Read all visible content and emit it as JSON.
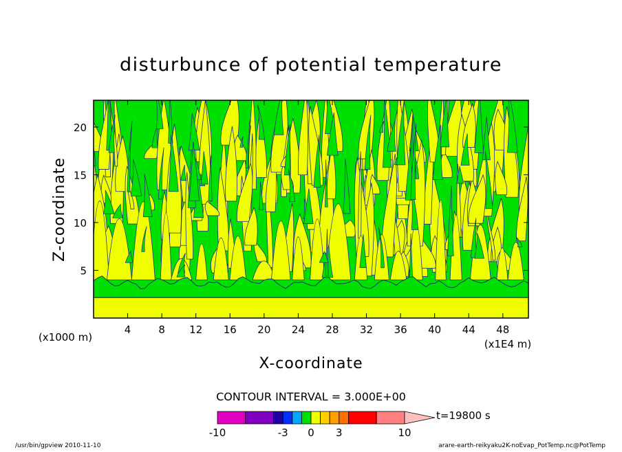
{
  "chart_data": {
    "type": "heatmap",
    "title": "disturbunce of potential temperature",
    "xlabel": "X-coordinate",
    "ylabel": "Z-coordinate",
    "x_unit": "(x1E4 m)",
    "y_unit": "(x1000 m)",
    "xlim": [
      0,
      51
    ],
    "ylim": [
      0,
      22.8
    ],
    "x_ticks": [
      4,
      8,
      12,
      16,
      20,
      24,
      28,
      32,
      36,
      40,
      44,
      48
    ],
    "y_ticks": [
      5,
      10,
      15,
      20
    ],
    "contour_interval_text": "CONTOUR INTERVAL = 3.000E+00",
    "time_text": "t=19800 s",
    "colorbar": {
      "tick_labels": [
        "-10",
        "-3",
        "0",
        "3",
        "10"
      ],
      "tick_values": [
        -10,
        -3,
        0,
        3,
        10
      ],
      "levels": [
        {
          "lo": -10,
          "hi": -7,
          "color": "#e000c0"
        },
        {
          "lo": -7,
          "hi": -4,
          "color": "#8000c0"
        },
        {
          "lo": -4,
          "hi": -3,
          "color": "#2000a0"
        },
        {
          "lo": -3,
          "hi": -2,
          "color": "#0030ff"
        },
        {
          "lo": -2,
          "hi": -1,
          "color": "#00a8ff"
        },
        {
          "lo": -1,
          "hi": 0,
          "color": "#00e000"
        },
        {
          "lo": 0,
          "hi": 1,
          "color": "#f0ff00"
        },
        {
          "lo": 1,
          "hi": 2,
          "color": "#ffd000"
        },
        {
          "lo": 2,
          "hi": 3,
          "color": "#ffa000"
        },
        {
          "lo": 3,
          "hi": 4,
          "color": "#ff7000"
        },
        {
          "lo": 4,
          "hi": 7,
          "color": "#ff0000"
        },
        {
          "lo": 7,
          "hi": 10,
          "color": "#ff8080"
        }
      ],
      "overflow_color": "#ffc0c0"
    },
    "field_colors": {
      "negative": "#00e000",
      "positive": "#f0ff00",
      "contour": "#203070"
    },
    "field_notes_bands_z": [
      {
        "z0": 0,
        "z1": 1.6,
        "value": "positive"
      },
      {
        "z0": 1.6,
        "z1": 2.2,
        "value": "positive"
      },
      {
        "z0": 2.2,
        "z1": 4.0,
        "value": "negative"
      }
    ]
  },
  "footer": {
    "left": "/usr/bin/gpview   2010-11-10",
    "right": "arare-earth-reikyaku2K-noEvap_PotTemp.nc@PotTemp"
  }
}
